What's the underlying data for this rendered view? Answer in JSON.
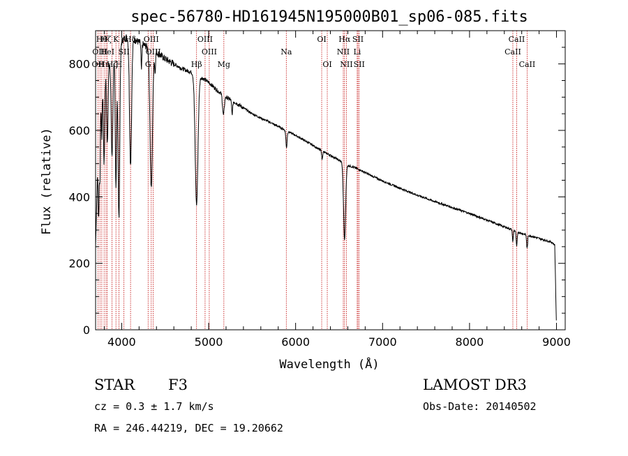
{
  "chart_data": {
    "type": "line",
    "title": "spec-56780-HD161945N195000B01_sp06-085.fits",
    "xlabel": "Wavelength (Å)",
    "ylabel": "Flux (relative)",
    "xlim": [
      3700,
      9100
    ],
    "ylim": [
      0,
      900
    ],
    "xticks": [
      4000,
      5000,
      6000,
      7000,
      8000,
      9000
    ],
    "yticks": [
      0,
      200,
      400,
      600,
      800
    ],
    "series": [
      {
        "name": "spectrum",
        "continuum": [
          [
            3700,
            250
          ],
          [
            3730,
            560
          ],
          [
            3760,
            700
          ],
          [
            3800,
            760
          ],
          [
            3850,
            800
          ],
          [
            3900,
            830
          ],
          [
            3950,
            850
          ],
          [
            4000,
            870
          ],
          [
            4050,
            880
          ],
          [
            4100,
            880
          ],
          [
            4200,
            865
          ],
          [
            4300,
            850
          ],
          [
            4400,
            835
          ],
          [
            4500,
            815
          ],
          [
            4600,
            800
          ],
          [
            4700,
            785
          ],
          [
            4800,
            775
          ],
          [
            4900,
            762
          ],
          [
            5000,
            745
          ],
          [
            5100,
            720
          ],
          [
            5200,
            700
          ],
          [
            5300,
            685
          ],
          [
            5400,
            668
          ],
          [
            5500,
            650
          ],
          [
            5600,
            637
          ],
          [
            5700,
            625
          ],
          [
            5800,
            612
          ],
          [
            5900,
            598
          ],
          [
            6000,
            585
          ],
          [
            6100,
            570
          ],
          [
            6200,
            555
          ],
          [
            6300,
            538
          ],
          [
            6400,
            525
          ],
          [
            6500,
            510
          ],
          [
            6600,
            495
          ],
          [
            6700,
            486
          ],
          [
            6800,
            473
          ],
          [
            6900,
            460
          ],
          [
            7000,
            448
          ],
          [
            7200,
            426
          ],
          [
            7400,
            405
          ],
          [
            7600,
            386
          ],
          [
            7800,
            368
          ],
          [
            8000,
            350
          ],
          [
            8200,
            330
          ],
          [
            8400,
            310
          ],
          [
            8600,
            290
          ],
          [
            8800,
            275
          ],
          [
            8950,
            263
          ],
          [
            8980,
            255
          ],
          [
            9000,
            0
          ]
        ],
        "absorption_lines": [
          [
            3735,
            250,
            6
          ],
          [
            3750,
            200,
            5
          ],
          [
            3771,
            140,
            5
          ],
          [
            3798,
            260,
            7
          ],
          [
            3835,
            230,
            8
          ],
          [
            3889,
            300,
            10
          ],
          [
            3934,
            420,
            8
          ],
          [
            3968,
            520,
            10
          ],
          [
            4102,
            380,
            12
          ],
          [
            4227,
            80,
            5
          ],
          [
            4340,
            420,
            14
          ],
          [
            4384,
            60,
            5
          ],
          [
            4861,
            390,
            16
          ],
          [
            5170,
            60,
            10
          ],
          [
            5270,
            40,
            6
          ],
          [
            5895,
            50,
            7
          ],
          [
            6305,
            25,
            5
          ],
          [
            6563,
            230,
            12
          ],
          [
            8498,
            35,
            5
          ],
          [
            8542,
            45,
            6
          ],
          [
            8662,
            40,
            6
          ]
        ]
      }
    ],
    "emission_lines": [
      {
        "wavelength": 3727,
        "label": "OII",
        "row": 2
      },
      {
        "wavelength": 3750,
        "label": "OIII",
        "row": 1
      },
      {
        "wavelength": 3771,
        "label": "Hθ",
        "row": 0
      },
      {
        "wavelength": 3798,
        "label": "Hη",
        "row": 2
      },
      {
        "wavelength": 3820,
        "label": "Hζ",
        "row": 0
      },
      {
        "wavelength": 3835,
        "label": "HeI",
        "row": 1
      },
      {
        "wavelength": 3889,
        "label": "Hζ",
        "row": 2
      },
      {
        "wavelength": 3934,
        "label": "K",
        "row": 0
      },
      {
        "wavelength": 3968,
        "label": "H",
        "row": 2
      },
      {
        "wavelength": 4026,
        "label": "SII",
        "row": 1
      },
      {
        "wavelength": 4102,
        "label": "Hδ",
        "row": 0
      },
      {
        "wavelength": 4304,
        "label": "G",
        "row": 2
      },
      {
        "wavelength": 4340,
        "label": "OIII",
        "row": 0
      },
      {
        "wavelength": 4363,
        "label": "OIII",
        "row": 1
      },
      {
        "wavelength": 4861,
        "label": "Hβ",
        "row": 2
      },
      {
        "wavelength": 4959,
        "label": "OIII",
        "row": 0
      },
      {
        "wavelength": 5007,
        "label": "OIII",
        "row": 1
      },
      {
        "wavelength": 5175,
        "label": "Mg",
        "row": 2
      },
      {
        "wavelength": 5893,
        "label": "Na",
        "row": 1
      },
      {
        "wavelength": 6300,
        "label": "OI",
        "row": 0
      },
      {
        "wavelength": 6364,
        "label": "OI",
        "row": 2
      },
      {
        "wavelength": 6548,
        "label": "NII",
        "row": 1
      },
      {
        "wavelength": 6563,
        "label": "Hα",
        "row": 0
      },
      {
        "wavelength": 6584,
        "label": "NII",
        "row": 2
      },
      {
        "wavelength": 6708,
        "label": "Li",
        "row": 1
      },
      {
        "wavelength": 6717,
        "label": "SII",
        "row": 0
      },
      {
        "wavelength": 6731,
        "label": "SII",
        "row": 2
      },
      {
        "wavelength": 8498,
        "label": "CaII",
        "row": 1
      },
      {
        "wavelength": 8542,
        "label": "CaII",
        "row": 0
      },
      {
        "wavelength": 8662,
        "label": "CaII",
        "row": 2
      }
    ]
  },
  "info": {
    "object_type": "STAR",
    "subclass": "F3",
    "survey": "LAMOST DR3",
    "redshift": "cz = 0.3 ± 1.7 km/s",
    "obs_date": "Obs-Date: 20140502",
    "coords": "RA = 246.44219, DEC =  19.20662"
  },
  "colors": {
    "line_marker": "#c00000",
    "spectrum": "#000000"
  }
}
